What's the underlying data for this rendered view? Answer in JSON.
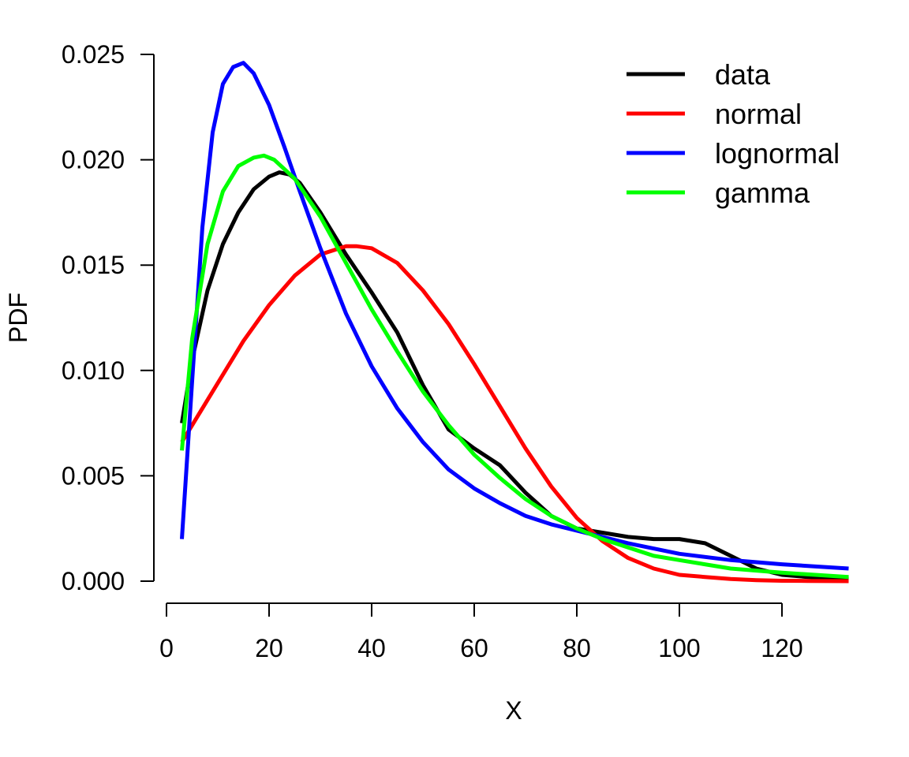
{
  "chart_data": {
    "type": "line",
    "title": "",
    "xlabel": "X",
    "ylabel": "PDF",
    "xlim": [
      0,
      133
    ],
    "ylim": [
      0,
      0.025
    ],
    "x_ticks": [
      "0",
      "20",
      "40",
      "60",
      "80",
      "100",
      "120"
    ],
    "y_ticks": [
      "0.000",
      "0.005",
      "0.010",
      "0.015",
      "0.020",
      "0.025"
    ],
    "grid": false,
    "legend_position": "top-right",
    "series": [
      {
        "name": "data",
        "color": "#000000",
        "x": [
          3,
          5,
          8,
          11,
          14,
          17,
          20,
          22,
          24,
          26,
          30,
          35,
          40,
          45,
          50,
          55,
          60,
          65,
          70,
          75,
          80,
          85,
          90,
          95,
          100,
          105,
          110,
          115,
          120,
          125,
          133
        ],
        "y": [
          0.0075,
          0.0105,
          0.0138,
          0.016,
          0.0175,
          0.0186,
          0.0192,
          0.0194,
          0.0193,
          0.0189,
          0.0175,
          0.0155,
          0.0137,
          0.0118,
          0.0093,
          0.0072,
          0.0063,
          0.0055,
          0.0042,
          0.0031,
          0.0025,
          0.0023,
          0.0021,
          0.002,
          0.002,
          0.0018,
          0.0012,
          0.0006,
          0.0003,
          0.0002,
          0.0001
        ]
      },
      {
        "name": "normal",
        "color": "#ff0000",
        "x": [
          3,
          5,
          10,
          15,
          20,
          25,
          30,
          35,
          37,
          40,
          45,
          50,
          55,
          60,
          65,
          70,
          75,
          80,
          85,
          90,
          95,
          100,
          105,
          110,
          115,
          120,
          125,
          133
        ],
        "y": [
          0.0066,
          0.0074,
          0.0094,
          0.0114,
          0.0131,
          0.0145,
          0.0155,
          0.0159,
          0.0159,
          0.0158,
          0.0151,
          0.0138,
          0.0122,
          0.0103,
          0.0083,
          0.0063,
          0.0045,
          0.003,
          0.0019,
          0.0011,
          0.0006,
          0.0003,
          0.0002,
          0.0001,
          5e-05,
          2e-05,
          1e-05,
          0.0
        ]
      },
      {
        "name": "lognormal",
        "color": "#0000ff",
        "x": [
          3,
          5,
          7,
          9,
          11,
          13,
          15,
          17,
          20,
          23,
          26,
          30,
          35,
          40,
          45,
          50,
          55,
          60,
          65,
          70,
          75,
          80,
          85,
          90,
          100,
          110,
          120,
          133
        ],
        "y": [
          0.002,
          0.0095,
          0.0168,
          0.0213,
          0.0236,
          0.0244,
          0.0246,
          0.0241,
          0.0226,
          0.0206,
          0.0185,
          0.0158,
          0.0127,
          0.0102,
          0.0082,
          0.0066,
          0.0053,
          0.0044,
          0.0037,
          0.0031,
          0.0027,
          0.0024,
          0.0021,
          0.0018,
          0.0013,
          0.001,
          0.0008,
          0.0006
        ]
      },
      {
        "name": "gamma",
        "color": "#00ff00",
        "x": [
          3,
          5,
          8,
          11,
          14,
          17,
          19,
          21,
          25,
          30,
          35,
          40,
          45,
          50,
          55,
          60,
          65,
          70,
          75,
          80,
          85,
          90,
          95,
          100,
          110,
          120,
          133
        ],
        "y": [
          0.0062,
          0.0115,
          0.016,
          0.0185,
          0.0197,
          0.0201,
          0.0202,
          0.02,
          0.0191,
          0.0173,
          0.0151,
          0.0129,
          0.0109,
          0.009,
          0.0074,
          0.006,
          0.0049,
          0.0039,
          0.0031,
          0.0025,
          0.002,
          0.0016,
          0.0012,
          0.001,
          0.0006,
          0.0004,
          0.0002
        ]
      }
    ]
  }
}
